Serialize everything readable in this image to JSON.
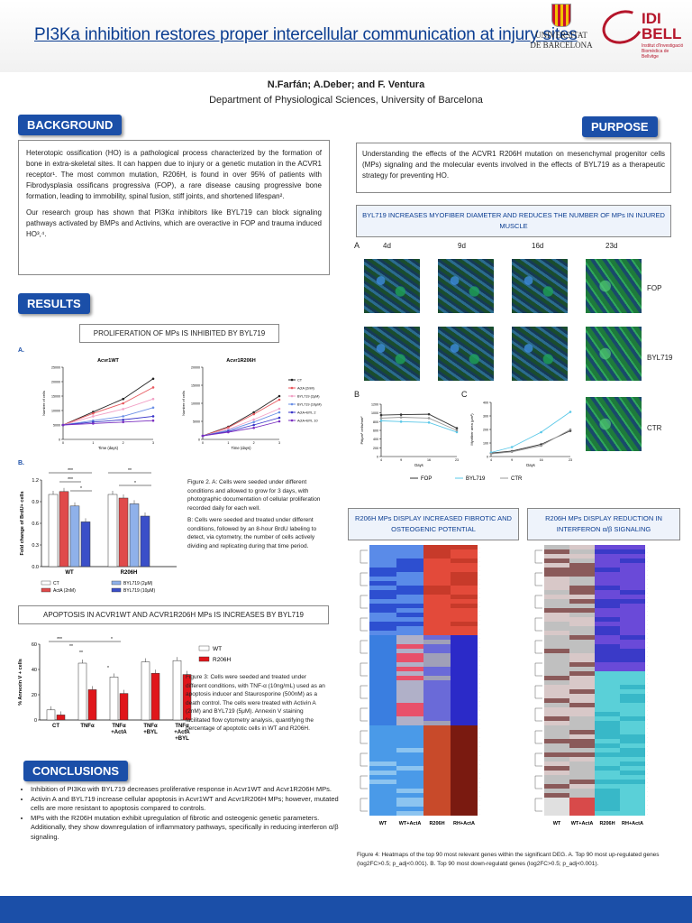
{
  "header": {
    "title": "PI3Ka inhibition restores proper intercellular communication at injury sites",
    "ub_logo_text": "UNIVERSITAT DE BARCELONA",
    "idi_logo_text": "IDI BELL",
    "idi_logo_sub": "Institut d'Investigació Biomèdica de Bellvitge"
  },
  "authors": "N.Farfán;  A.Deber; and F. Ventura",
  "department": "Department of Physiological Sciences, University of Barcelona",
  "background": {
    "heading": "BACKGROUND",
    "p1": "Heterotopic ossification (HO) is a pathological process characterized by the formation of bone in extra-skeletal sites. It can happen due to injury or a genetic mutation in the ACVR1 receptor¹. The most common mutation, R206H, is found in over 95% of patients with Fibrodysplasia ossificans progressiva (FOP), a rare disease causing progressive bone formation, leading to immobility, spinal fusion, stiff joints, and shortened lifespan².",
    "p2": "Our research group has shown that PI3Kα inhibitors like BYL719 can block signaling pathways activated by BMPs and Activins, which are overactive in FOP and trauma induced HO³,⁴."
  },
  "purpose": {
    "heading": "PURPOSE",
    "text": "Understanding the effects of the ACVR1 R206H mutation on mesenchymal progenitor cells (MPs) signaling and the molecular events involved in the effects of BYL719 as a therapeutic strategy for preventing HO."
  },
  "results": {
    "heading": "RESULTS",
    "prolif_title": "PROLIFERATION OF MPs IS INHIBITED BY BYL719",
    "panel_a": "A.",
    "panel_b": "B.",
    "fig2_caption_a": "Figure 2. A: Cells were seeded under different conditions and allowed to grow for 3 days, with photographic documentation of cellular proliferation recorded daily for each well.",
    "fig2_caption_b": "B: Cells were seeded and treated under different conditions, followed by an 8-hour BrdU labeling to detect, via cytometry, the number of cells actively dividing and replicating during that time period.",
    "apoptosis_title": "APOPTOSIS IN ACVR1WT AND ACVR1R206H MPs IS INCREASES  BY BYL719",
    "fig3_caption": "Figure 3: Cells were seeded and treated under different conditions, with TNF-α (10ng/mL) used as an apoptosis inducer and Staurosporine (500nM) as a death control. The cells were treated with Activin A (2nM) and BYL719 (5μM). Annexin V staining facilitated flow cytometry analysis, quantifying the percentage of apoptotic cells in WT and R206H.",
    "byl_title": "BYL719 INCREASES MYOFIBER DIAMETER AND REDUCES THE NUMBER OF MPs IN INJURED MUSCLE",
    "micro_panel": "A",
    "micro_days": [
      "4d",
      "9d",
      "16d",
      "23d"
    ],
    "micro_rows": [
      "FOP",
      "BYL719",
      "CTR"
    ],
    "panel_b_label": "B",
    "panel_c_label": "C",
    "fibrotic_title": "R206H MPs DISPLAY INCREASED FIBROTIC AND OSTEOGENIC POTENTIAL",
    "interferon_title": "R206H MPs DISPLAY REDUCTION IN INTERFERON α/β SIGNALING",
    "heatmap_cols": [
      "WT",
      "WT+ActA",
      "R206H",
      "RH+ActA"
    ],
    "fig4_caption": "Figure 4: Heatmaps of the top 90 most relevant genes within the significant DEG. A. Top 90 most up-regulated genes (log2FC>0.5; p_adj<0.001). B. Top 90 most down-regulatd genes (log2FC>0.5; p_adj<0.001)."
  },
  "conclusions": {
    "heading": "CONCLUSIONS",
    "items": [
      "Inhibition of PI3Kα with BYL719 decreases proliferative response in Acvr1WT and Acvr1R206H MPs.",
      "Activin A and BYL719 increase cellular apoptosis in Acvr1WT and Acvr1R206H MPs; however, mutated cells are more resistant to apoptosis compared to controls.",
      "MPs with the R206H mutation exhibit upregulation of fibrotic and osteogenic genetic parameters. Additionally, they show downregulation of inflammatory pathways, specifically in reducing interferon α/β signaling."
    ]
  },
  "colors": {
    "accent_blue": "#1b4fa8",
    "red": "#d7191c"
  },
  "chart_data": [
    {
      "type": "line",
      "title": "Acvr1WT",
      "xlabel": "Time (days)",
      "ylabel": "Number of cells",
      "x": [
        0,
        1,
        2,
        3
      ],
      "ylim": [
        0,
        25000
      ],
      "yticks": [
        0,
        5000,
        10000,
        15000,
        20000,
        25000
      ],
      "series": [
        {
          "name": "CT",
          "color": "#222222",
          "values": [
            5000,
            9500,
            14000,
            21000
          ]
        },
        {
          "name": "ActA (2nM)",
          "color": "#e8585e",
          "values": [
            5000,
            9000,
            12500,
            18000
          ]
        },
        {
          "name": "BYL719 (2μM)",
          "color": "#f2a1c6",
          "values": [
            5000,
            8000,
            10500,
            14000
          ]
        },
        {
          "name": "BYL719 (10μM)",
          "color": "#6a8fe6",
          "values": [
            5000,
            6500,
            8000,
            11000
          ]
        },
        {
          "name": "ActA+BYL 2",
          "color": "#3a36c8",
          "values": [
            5000,
            6000,
            6800,
            8000
          ]
        },
        {
          "name": "ActA+BYL 10",
          "color": "#7a2fc0",
          "values": [
            5000,
            5500,
            6000,
            6500
          ]
        }
      ]
    },
    {
      "type": "line",
      "title": "Acvr1R206H",
      "xlabel": "Time (days)",
      "ylabel": "Number of cells",
      "x": [
        0,
        1,
        2,
        3
      ],
      "ylim": [
        0,
        20000
      ],
      "yticks": [
        0,
        5000,
        10000,
        15000,
        20000
      ],
      "legend": [
        "CT",
        "ActA (2nM)",
        "BYL719 (2μM)",
        "BYL719 (10μM)",
        "ActA+BYL 2",
        "ActA+BYL 10"
      ],
      "series": [
        {
          "name": "CT",
          "color": "#222222",
          "values": [
            1000,
            3500,
            7500,
            12000
          ]
        },
        {
          "name": "ActA (2nM)",
          "color": "#e8585e",
          "values": [
            1000,
            3300,
            7000,
            11000
          ]
        },
        {
          "name": "BYL719 (2μM)",
          "color": "#f2a1c6",
          "values": [
            1000,
            2800,
            5500,
            8500
          ]
        },
        {
          "name": "BYL719 (10μM)",
          "color": "#6a8fe6",
          "values": [
            1000,
            2500,
            4800,
            7500
          ]
        },
        {
          "name": "ActA+BYL 2",
          "color": "#3a36c8",
          "values": [
            1000,
            2200,
            4000,
            6000
          ]
        },
        {
          "name": "ActA+BYL 10",
          "color": "#7a2fc0",
          "values": [
            1000,
            2000,
            3200,
            5000
          ]
        }
      ]
    },
    {
      "type": "bar",
      "ylabel": "Fold change of BrdU+ cells",
      "ylim": [
        0,
        1.2
      ],
      "yticks": [
        "0.0",
        "0.3",
        "0.6",
        "0.9",
        "1.2"
      ],
      "categories": [
        "WT",
        "R206H"
      ],
      "legend": [
        "CT",
        "ActA (2nM)",
        "BYL719 (2μM)",
        "BYL719 (10μM)"
      ],
      "series": [
        {
          "name": "CT",
          "color": "#ffffff",
          "values": [
            1.0,
            1.0
          ]
        },
        {
          "name": "ActA (2nM)",
          "color": "#e04a4a",
          "values": [
            1.04,
            0.95
          ]
        },
        {
          "name": "BYL719 (2μM)",
          "color": "#8fb1ea",
          "values": [
            0.84,
            0.87
          ]
        },
        {
          "name": "BYL719 (10μM)",
          "color": "#3b4fc8",
          "values": [
            0.62,
            0.7
          ]
        }
      ],
      "significance": [
        "***",
        "***",
        "*",
        "**",
        "*"
      ]
    },
    {
      "type": "bar",
      "ylabel": "% Annexin V + cells",
      "ylim": [
        0,
        60
      ],
      "yticks": [
        0,
        20,
        40,
        60
      ],
      "categories": [
        "CT",
        "TNFα",
        "TNFα\n+ActA",
        "TNFα\n+BYL",
        "TNFα\n+ActA\n+BYL"
      ],
      "legend": [
        "WT",
        "R206H"
      ],
      "series": [
        {
          "name": "WT",
          "color": "#ffffff",
          "values": [
            8,
            45,
            34,
            46,
            47
          ]
        },
        {
          "name": "R206H",
          "color": "#e0161b",
          "values": [
            4,
            24,
            21,
            37,
            36
          ]
        }
      ],
      "significance": [
        "***",
        "**",
        "**",
        "*",
        "*"
      ]
    },
    {
      "type": "line",
      "ylabel": "Pit/µm² cells/mm²",
      "xlabel": "Days",
      "x": [
        4,
        9,
        16,
        23
      ],
      "ylim": [
        0,
        1200
      ],
      "yticks": [
        0,
        200,
        400,
        600,
        800,
        1000,
        1200
      ],
      "legend": [
        "FOP",
        "BYL719",
        "CTR"
      ],
      "series": [
        {
          "name": "FOP",
          "color": "#333333",
          "values": [
            950,
            960,
            970,
            650
          ]
        },
        {
          "name": "BYL719",
          "color": "#5ac8e8",
          "values": [
            820,
            800,
            780,
            560
          ]
        },
        {
          "name": "CTR",
          "color": "#999999",
          "values": [
            880,
            900,
            880,
            600
          ]
        }
      ]
    },
    {
      "type": "line",
      "ylabel": "Myofiber area (µm²)",
      "xlabel": "Days",
      "x": [
        4,
        9,
        16,
        23
      ],
      "ylim": [
        0,
        400
      ],
      "yticks": [
        0,
        100,
        200,
        300,
        400
      ],
      "series": [
        {
          "name": "FOP",
          "color": "#333333",
          "values": [
            25,
            40,
            90,
            190
          ]
        },
        {
          "name": "BYL719",
          "color": "#5ac8e8",
          "values": [
            30,
            70,
            180,
            330
          ]
        },
        {
          "name": "CTR",
          "color": "#999999",
          "values": [
            20,
            35,
            80,
            200
          ]
        }
      ]
    }
  ]
}
